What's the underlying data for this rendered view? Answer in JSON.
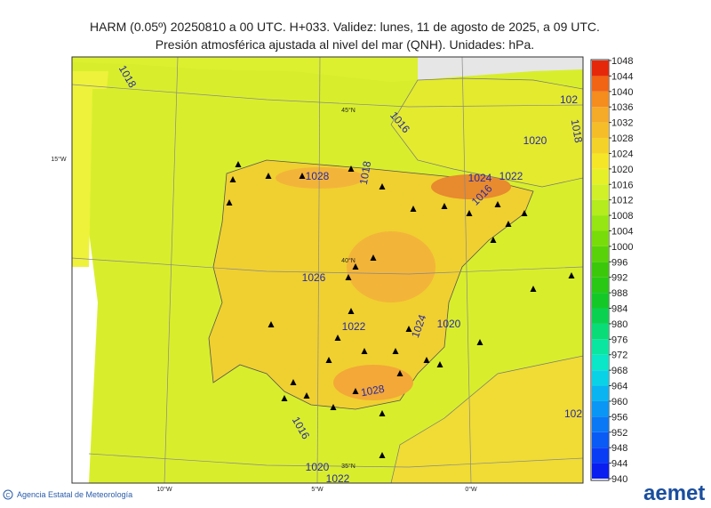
{
  "header": {
    "title": "HARM (0.05º) 20250810 a 00 UTC. H+033. Validez: lunes, 11 de agosto de 2025, a 09 UTC.",
    "subtitle": "Presión atmosférica ajustada al nivel del mar (QNH). Unidades: hPa."
  },
  "map": {
    "contour_labels": [
      "1018",
      "1016",
      "1020",
      "1018",
      "102",
      "1028",
      "1018",
      "1024",
      "1022",
      "1016",
      "1026",
      "1022",
      "1024",
      "1020",
      "1028",
      "1016",
      "1020",
      "1022",
      "102"
    ],
    "grid_labels": [
      "45°N",
      "15°W",
      "40°N",
      "35°N",
      "10°W",
      "5°W",
      "0°W"
    ]
  },
  "colorbar": {
    "ticks": [
      940,
      944,
      948,
      952,
      956,
      960,
      964,
      968,
      972,
      976,
      980,
      984,
      988,
      992,
      996,
      1000,
      1004,
      1008,
      1012,
      1016,
      1020,
      1024,
      1028,
      1032,
      1036,
      1040,
      1044,
      1048
    ],
    "colors": [
      "#0a1ef0",
      "#0a3cf5",
      "#0a5af5",
      "#0a78f5",
      "#0a96f5",
      "#0ab4f0",
      "#0ad2e6",
      "#0ae6c8",
      "#0ae6a0",
      "#0adc78",
      "#0ad250",
      "#14c828",
      "#28c814",
      "#3cc80a",
      "#5ad20a",
      "#78dc0a",
      "#96e614",
      "#b4ec1e",
      "#d2f028",
      "#e6f028",
      "#f5e628",
      "#f5d228",
      "#f5be28",
      "#f5aa28",
      "#f58c1e",
      "#f06414",
      "#e6280a"
    ]
  },
  "footer": {
    "credit": "Agencia Estatal de Meteorología",
    "logo": "aemet"
  }
}
